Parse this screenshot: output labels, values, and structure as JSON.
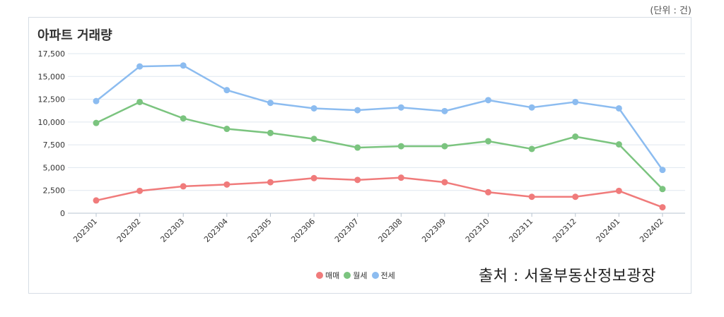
{
  "unit_note": "(단위 : 건)",
  "source_note": "출처 : 서울부동산정보광장",
  "chart_data": {
    "type": "line",
    "title": "아파트 거래량",
    "xlabel": "",
    "ylabel": "",
    "ylim": [
      0,
      17500
    ],
    "yticks": [
      0,
      2500,
      5000,
      7500,
      10000,
      12500,
      15000,
      17500
    ],
    "ytick_labels": [
      "0",
      "2,500",
      "5,000",
      "7,500",
      "10,000",
      "12,500",
      "15,000",
      "17,500"
    ],
    "grid": true,
    "legend_position": "bottom",
    "categories": [
      "202301",
      "202302",
      "202303",
      "202304",
      "202305",
      "202306",
      "202307",
      "202308",
      "202309",
      "202310",
      "202311",
      "202312",
      "202401",
      "202402"
    ],
    "series": [
      {
        "name": "매매",
        "color": "#f07b7b",
        "values": [
          1400,
          2450,
          2950,
          3150,
          3400,
          3850,
          3650,
          3900,
          3400,
          2300,
          1800,
          1800,
          2450,
          650
        ]
      },
      {
        "name": "월세",
        "color": "#7bc47f",
        "values": [
          9900,
          12200,
          10400,
          9250,
          8800,
          8150,
          7200,
          7350,
          7350,
          7900,
          7050,
          8400,
          7550,
          2650
        ]
      },
      {
        "name": "전세",
        "color": "#8cbcf0",
        "values": [
          12300,
          16100,
          16200,
          13500,
          12100,
          11500,
          11300,
          11600,
          11200,
          12400,
          11600,
          12200,
          11500,
          4750
        ]
      }
    ]
  }
}
